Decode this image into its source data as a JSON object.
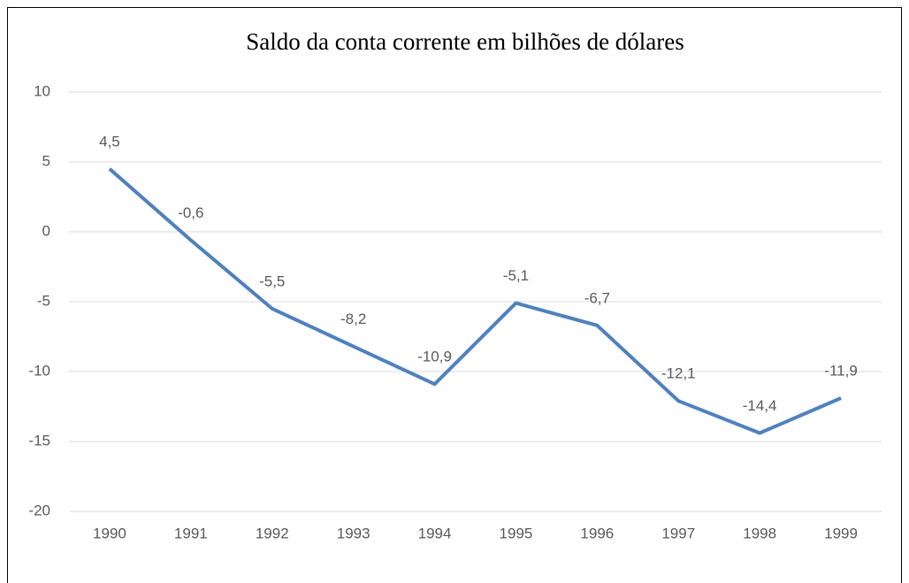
{
  "chart_data": {
    "type": "line",
    "title": "Saldo da conta corrente em bilhões de dólares",
    "categories": [
      "1990",
      "1991",
      "1992",
      "1993",
      "1994",
      "1995",
      "1996",
      "1997",
      "1998",
      "1999"
    ],
    "values": [
      4.5,
      -0.6,
      -5.5,
      -8.2,
      -10.9,
      -5.1,
      -6.7,
      -12.1,
      -14.4,
      -11.9
    ],
    "value_labels": [
      "4,5",
      "-0,6",
      "-5,5",
      "-8,2",
      "-10,9",
      "-5,1",
      "-6,7",
      "-12,1",
      "-14,4",
      "-11,9"
    ],
    "color": "#4f81bd",
    "ylim": [
      -20,
      10
    ],
    "yticks": [
      10,
      5,
      0,
      -5,
      -10,
      -15,
      -20
    ],
    "grid": true
  }
}
